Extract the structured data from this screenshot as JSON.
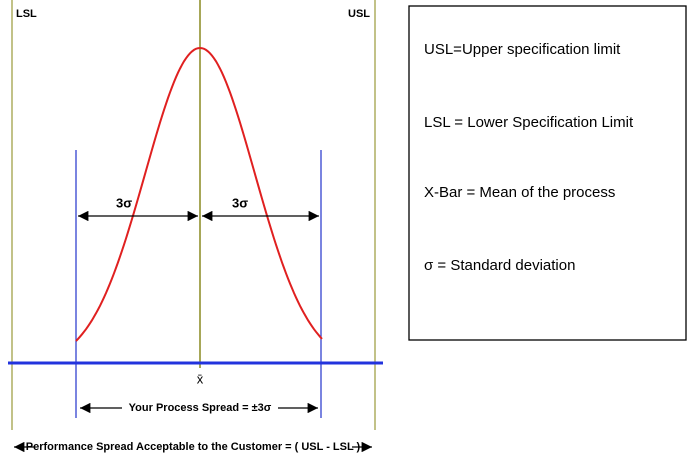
{
  "diagram": {
    "lsl_label": "LSL",
    "usl_label": "USL",
    "left_sigma": "3σ",
    "right_sigma": "3σ",
    "mean_symbol": "x̄",
    "process_spread": "Your Process Spread = ±3σ",
    "performance_spread": "Performance Spread Acceptable to the Customer = ( USL - LSL )"
  },
  "legend": {
    "items": [
      "USL=Upper specification limit",
      "LSL = Lower Specification Limit",
      "X-Bar = Mean of the process",
      "σ = Standard deviation"
    ]
  }
}
